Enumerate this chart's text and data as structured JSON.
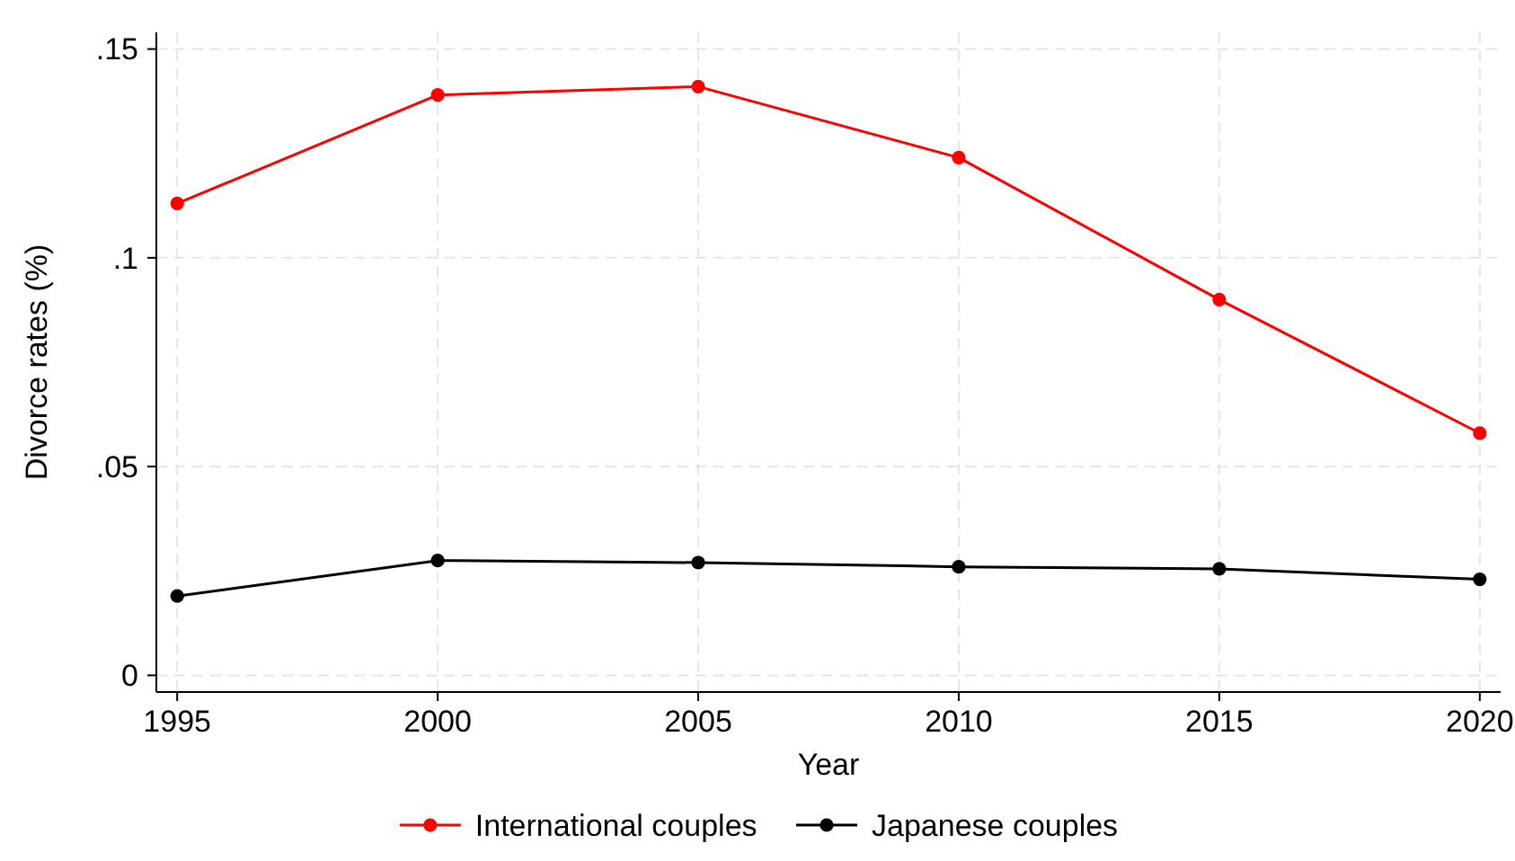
{
  "chart_data": {
    "type": "line",
    "xlabel": "Year",
    "ylabel": "Divorce rates (%)",
    "x": [
      1995,
      2000,
      2005,
      2010,
      2015,
      2020
    ],
    "series": [
      {
        "name": "International couples",
        "color": "#ff0000",
        "values": [
          0.113,
          0.139,
          0.141,
          0.124,
          0.09,
          0.058
        ]
      },
      {
        "name": "Japanese couples",
        "color": "#000000",
        "values": [
          0.019,
          0.0275,
          0.027,
          0.026,
          0.0255,
          0.023
        ]
      }
    ],
    "xlim": [
      1994.6,
      2020.4
    ],
    "xticks": [
      1995,
      2000,
      2005,
      2010,
      2015,
      2020
    ],
    "ylim": [
      -0.004,
      0.154
    ],
    "yticks": [
      0,
      {
        "value": 0.05,
        "label": ".05"
      },
      {
        "value": 0.1,
        "label": ".1"
      },
      {
        "value": 0.15,
        "label": ".15"
      }
    ],
    "grid": true,
    "legend": "bottom",
    "marker": "circle",
    "line_style": "solid"
  }
}
